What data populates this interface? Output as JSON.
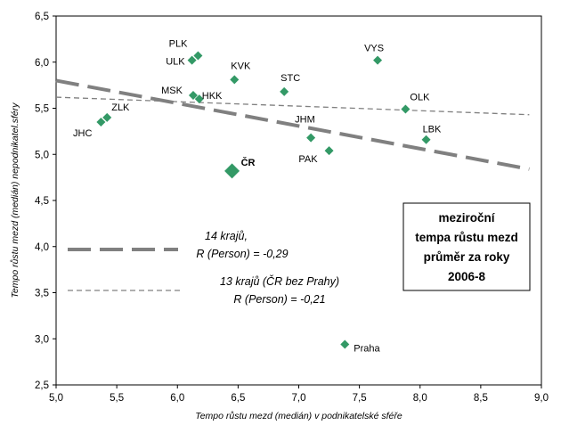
{
  "chart_data": {
    "type": "scatter",
    "xlabel": "Tempo růstu mezd (medián) v podnikatelské sféře",
    "ylabel": "Tempo růstu mezd (medián) nepodnikatel.sféry",
    "xlim": [
      5.0,
      9.0
    ],
    "ylim": [
      2.5,
      6.5
    ],
    "xticks": [
      "5,0",
      "5,5",
      "6,0",
      "6,5",
      "7,0",
      "7,5",
      "8,0",
      "8,5",
      "9,0"
    ],
    "yticks": [
      "2,5",
      "3,0",
      "3,5",
      "4,0",
      "4,5",
      "5,0",
      "5,5",
      "6,0",
      "6,5"
    ],
    "grid": false,
    "marker_color": "#339966",
    "line_color": "#808080",
    "points": [
      {
        "label": "PLK",
        "x": 6.17,
        "y": 6.07,
        "size": "small",
        "bold": false
      },
      {
        "label": "ULK",
        "x": 6.12,
        "y": 6.02,
        "size": "small",
        "bold": false
      },
      {
        "label": "VYS",
        "x": 7.65,
        "y": 6.02,
        "size": "small",
        "bold": false
      },
      {
        "label": "KVK",
        "x": 6.47,
        "y": 5.81,
        "size": "small",
        "bold": false
      },
      {
        "label": "STC",
        "x": 6.88,
        "y": 5.68,
        "size": "small",
        "bold": false
      },
      {
        "label": "MSK",
        "x": 6.13,
        "y": 5.64,
        "size": "small",
        "bold": false
      },
      {
        "label": "HKK",
        "x": 6.18,
        "y": 5.6,
        "size": "small",
        "bold": false
      },
      {
        "label": "OLK",
        "x": 7.88,
        "y": 5.49,
        "size": "small",
        "bold": false
      },
      {
        "label": "ZLK",
        "x": 5.42,
        "y": 5.4,
        "size": "small",
        "bold": false
      },
      {
        "label": "JHC",
        "x": 5.37,
        "y": 5.35,
        "size": "small",
        "bold": false
      },
      {
        "label": "JHM",
        "x": 7.1,
        "y": 5.18,
        "size": "small",
        "bold": false
      },
      {
        "label": "LBK",
        "x": 8.05,
        "y": 5.16,
        "size": "small",
        "bold": false
      },
      {
        "label": "PAK",
        "x": 7.25,
        "y": 5.04,
        "size": "small",
        "bold": false
      },
      {
        "label": "ČR",
        "x": 6.45,
        "y": 4.82,
        "size": "large",
        "bold": true
      },
      {
        "label": "Praha",
        "x": 7.38,
        "y": 2.94,
        "size": "small",
        "bold": false
      }
    ],
    "trendlines": [
      {
        "name": "14 krajů",
        "style": "long-dash",
        "x": [
          5.0,
          8.9
        ],
        "y": [
          5.8,
          4.84
        ]
      },
      {
        "name": "13 krajů (ČR bez Prahy)",
        "style": "short-dash",
        "x": [
          5.0,
          8.9
        ],
        "y": [
          5.62,
          5.43
        ]
      }
    ],
    "legend": [
      {
        "line1": "14 krajů,",
        "line2": "R (Person) = -0,29",
        "style": "long-dash"
      },
      {
        "line1": "13 krajů (ČR bez Prahy)",
        "line2": "R (Person) = -0,21",
        "style": "short-dash"
      }
    ],
    "annotation_box": [
      "meziroční",
      "tempa růstu mezd",
      "průměr za roky",
      "2006-8"
    ]
  }
}
